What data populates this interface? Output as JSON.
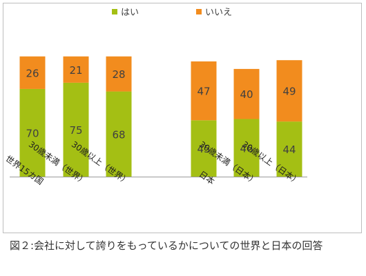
{
  "chart_data": {
    "type": "bar",
    "stacked": true,
    "categories": [
      "世界15カ国",
      "30歳未満（世界）",
      "30歳以上（世界）",
      "日本",
      "30歳未満（日本）",
      "30歳以上（日本）"
    ],
    "series": [
      {
        "name": "はい",
        "values": [
          70,
          75,
          68,
          45,
          46,
          44
        ],
        "color": "#a4bf14"
      },
      {
        "name": "いいえ",
        "values": [
          26,
          21,
          28,
          47,
          40,
          49
        ],
        "color": "#f28c1e"
      }
    ],
    "ylim": [
      0,
      100
    ],
    "grid": false,
    "legend_position": "top",
    "label_color": "#404040"
  },
  "caption": "図２:会社に対して誇りをもっているかについての世界と日本の回答"
}
